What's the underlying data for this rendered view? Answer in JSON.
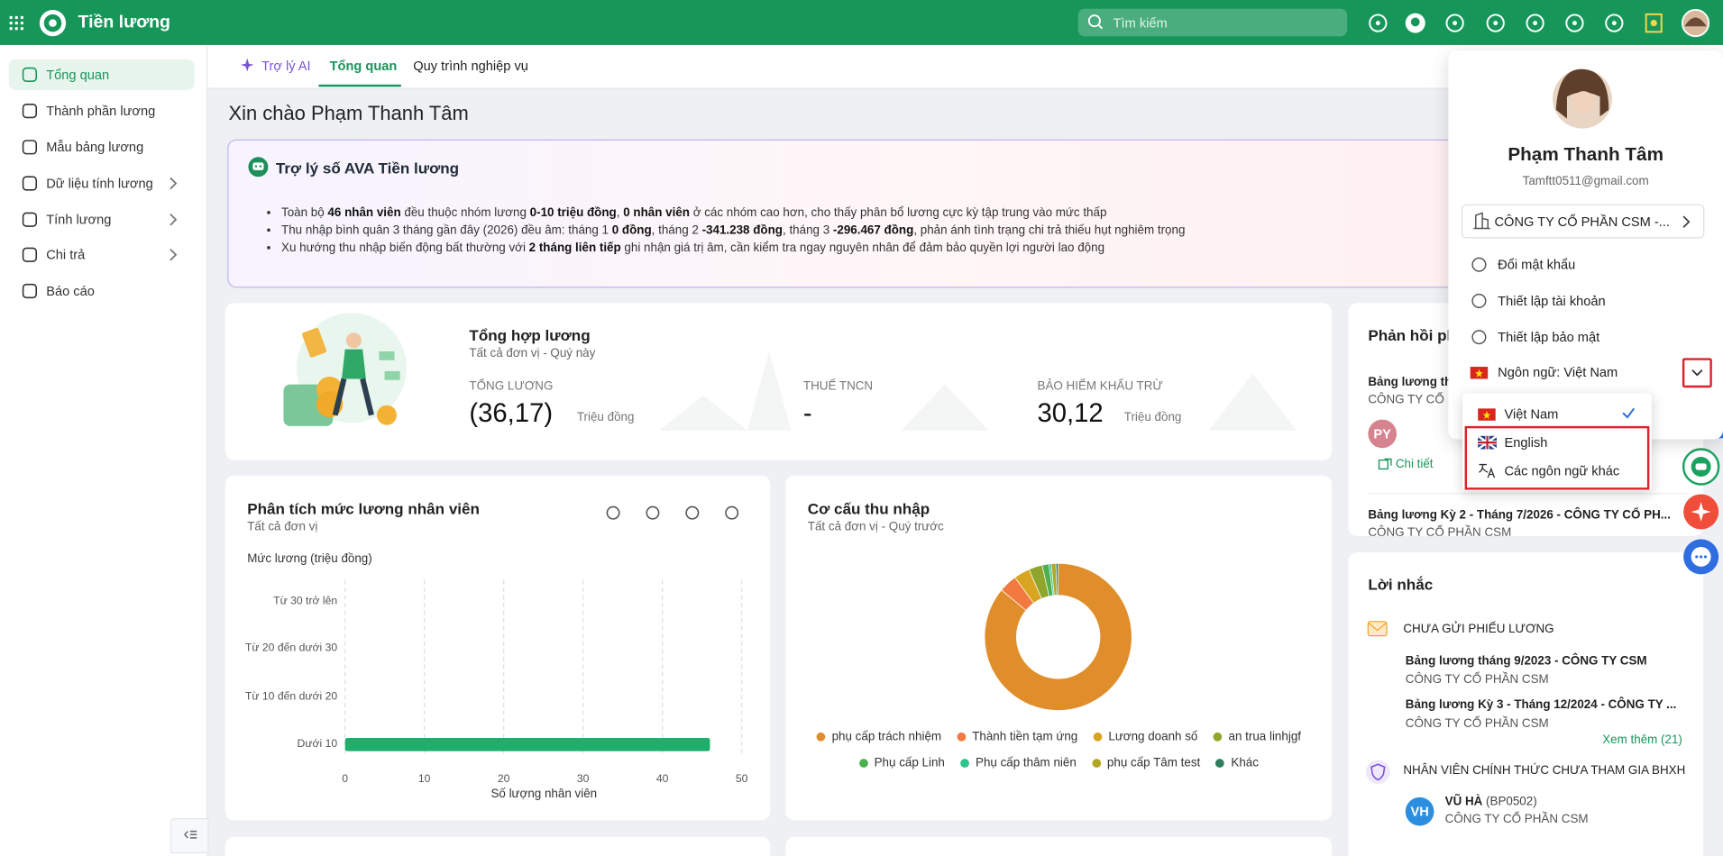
{
  "header": {
    "app_title": "Tiền lương",
    "search_placeholder": "Tìm kiếm"
  },
  "sidebar": {
    "items": [
      {
        "label": "Tổng quan",
        "active": true
      },
      {
        "label": "Thành phần lương"
      },
      {
        "label": "Mẫu bảng lương"
      },
      {
        "label": "Dữ liệu tính lương",
        "submenu": true
      },
      {
        "label": "Tính lương",
        "submenu": true
      },
      {
        "label": "Chi trả",
        "submenu": true
      },
      {
        "label": "Báo cáo"
      }
    ]
  },
  "tabs": [
    {
      "label": "Trợ lý AI",
      "ai": true
    },
    {
      "label": "Tổng quan",
      "active": true
    },
    {
      "label": "Quy trình nghiệp vụ"
    }
  ],
  "greeting": "Xin chào Phạm Thanh Tâm",
  "assistant": {
    "title": "Trợ lý số AVA Tiền lương",
    "bullets": [
      [
        "Toàn bộ ",
        "46 nhân viên",
        " đều thuộc nhóm lương ",
        "0-10 triệu đồng",
        ", ",
        "0 nhân viên",
        " ở các nhóm cao hơn, cho thấy phân bổ lương cực kỳ tập trung vào mức thấp"
      ],
      [
        "Thu nhập bình quân 3 tháng gần đây (2026) đều âm: tháng 1 ",
        "0 đồng",
        ", tháng 2 ",
        "-341.238 đồng",
        ", tháng 3 ",
        "-296.467 đồng",
        ", phản ánh tình trạng chi trả thiếu hụt nghiêm trọng"
      ],
      [
        "Xu hướng thu nhập biến động bất thường với ",
        "2 tháng liên tiếp",
        " ghi nhận giá trị âm, cần kiểm tra ngay nguyên nhân để đảm bảo quyền lợi người lao động"
      ]
    ]
  },
  "summary": {
    "title": "Tổng hợp lương",
    "subtitle": "Tất cả đơn vị - Quý này",
    "metrics": [
      {
        "label": "TỔNG LƯƠNG",
        "value": "(36,17)",
        "unit": "Triệu đồng"
      },
      {
        "label": "THUẾ TNCN",
        "value": "-"
      },
      {
        "label": "BẢO HIỂM KHẤU TRỪ",
        "value": "30,12",
        "unit": "Triệu đồng"
      }
    ]
  },
  "chart_data": [
    {
      "type": "bar",
      "orientation": "horizontal",
      "title": "Phân tích mức lương nhân viên",
      "subtitle": "Tất cả đơn vị",
      "y_label": "Mức lương (triệu đồng)",
      "x_label": "Số lượng nhân viên",
      "categories": [
        "Từ 30 trở lên",
        "Từ 20 đến dưới 30",
        "Từ 10 đến dưới 20",
        "Dưới 10"
      ],
      "values": [
        0,
        0,
        0,
        46
      ],
      "color": "#1fae6b",
      "xlim": [
        0,
        50
      ],
      "xticks": [
        0,
        10,
        20,
        30,
        40,
        50
      ],
      "grid": true
    },
    {
      "type": "pie",
      "donut": true,
      "title": "Cơ cấu thu nhập",
      "subtitle": "Tất cả đơn vị - Quý trước",
      "categories": [
        "phụ cấp trách nhiệm",
        "Thành tiền tạm ứng",
        "Lương doanh số",
        "an trua linhjgf",
        "Phụ cấp Linh",
        "Phụ cấp thâm niên",
        "phụ cấp Tâm test",
        "Khác"
      ],
      "values": [
        86,
        4,
        3.5,
        3,
        1.5,
        0.5,
        1,
        0.5
      ],
      "colors": [
        "#e08e2b",
        "#f2793f",
        "#d9a41f",
        "#8fa52b",
        "#4caf50",
        "#2bc48a",
        "#b3a521",
        "#2e7d5b"
      ]
    }
  ],
  "feedback": {
    "title": "Phản hồi ph",
    "items": [
      {
        "title": "Bảng lương th",
        "company": "CÔNG TY CỔ",
        "initials": "PY",
        "link": "Chi tiết"
      },
      {
        "title": "Bảng lương Kỳ 2 - Tháng 7/2026 - CÔNG TY CỔ PH...",
        "company": "CÔNG TY CỔ PHẦN CSM"
      }
    ]
  },
  "reminders": {
    "title": "Lời nhắc",
    "groups": [
      {
        "title": "CHƯA GỬI PHIẾU LƯƠNG",
        "items": [
          {
            "title": "Bảng lương tháng 9/2023 - CÔNG TY CSM",
            "company": "CÔNG TY CỔ PHẦN CSM"
          },
          {
            "title": "Bảng lương Kỳ 3 - Tháng 12/2024 - CÔNG TY ...",
            "company": "CÔNG TY CỔ PHẦN CSM"
          }
        ],
        "more": "Xem thêm (21)"
      },
      {
        "title": "NHÂN VIÊN CHÍNH THỨC CHƯA THAM GIA BHXH",
        "employees": [
          {
            "initials": "VH",
            "name": "VŨ HÀ",
            "code": "(BP0502)",
            "company": "CÔNG TY CỔ PHẦN CSM"
          }
        ]
      }
    ]
  },
  "profile": {
    "name": "Phạm Thanh Tâm",
    "email": "Tamftt0511@gmail.com",
    "company": "CÔNG TY CỔ PHẦN CSM -...",
    "menu": [
      "Đổi mật khẩu",
      "Thiết lập tài khoản",
      "Thiết lập bảo mật"
    ],
    "language": "Ngôn ngữ: Việt Nam",
    "languages": [
      {
        "label": "Việt Nam",
        "selected": true
      },
      {
        "label": "English",
        "highlighted": true
      },
      {
        "label": "Các ngôn ngữ khác",
        "highlighted": true
      }
    ]
  }
}
